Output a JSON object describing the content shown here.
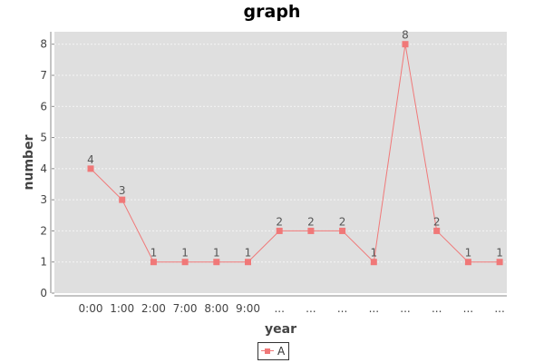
{
  "chart_data": {
    "type": "line",
    "title": "graph",
    "xlabel": "year",
    "ylabel": "number",
    "categories": [
      "0:00",
      "1:00",
      "2:00",
      "7:00",
      "8:00",
      "9:00",
      "...",
      "...",
      "...",
      "...",
      "...",
      "...",
      "...",
      "..."
    ],
    "series": [
      {
        "name": "A",
        "values": [
          4,
          3,
          1,
          1,
          1,
          1,
          2,
          2,
          2,
          1,
          8,
          2,
          1,
          1
        ]
      }
    ],
    "ylim": [
      0,
      8.4
    ],
    "yticks": [
      0,
      1,
      2,
      3,
      4,
      5,
      6,
      7,
      8
    ],
    "grid": true,
    "legend_position": "bottom",
    "data_labels": true,
    "colors": {
      "series": "#f07878",
      "plot_background": "#dfdfdf",
      "grid": "#f5f5f5"
    }
  }
}
